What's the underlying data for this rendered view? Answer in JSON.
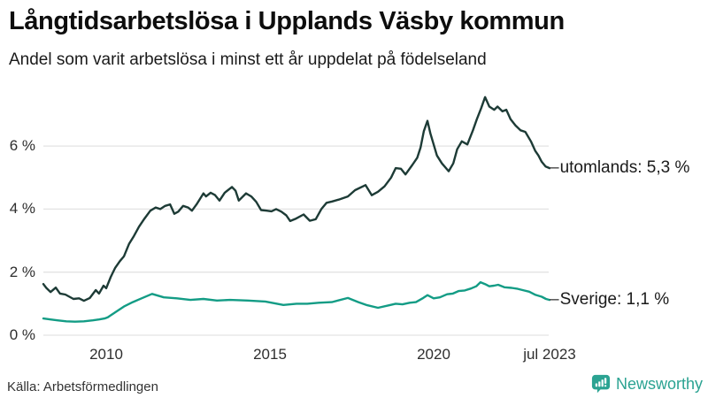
{
  "footer": {
    "source": "Källa: Arbetsförmedlingen",
    "brand": "Newsworthy"
  },
  "colors": {
    "grid": "#e3e3e3",
    "brand": "#2ba392",
    "utomlands_line": "#1d3b36",
    "sverige_line": "#139c85"
  },
  "chart_data": {
    "type": "line",
    "title": "Långtidsarbetslösa i Upplands Väsby kommun",
    "subtitle": "Andel som varit arbetslösa i minst ett år uppdelat på födelseland",
    "xlabel": "",
    "ylabel": "",
    "x_unit": "decimal year (monthly data)",
    "xlim": [
      2008.08,
      2023.54
    ],
    "ylim": [
      0,
      7.7
    ],
    "grid": "horizontal",
    "legend": "inline-end-labels",
    "connector": "–",
    "y_ticks": [
      {
        "value": 0,
        "label": "0 %"
      },
      {
        "value": 2,
        "label": "2 %"
      },
      {
        "value": 4,
        "label": "4 %"
      },
      {
        "value": 6,
        "label": "6 %"
      }
    ],
    "x_ticks": [
      {
        "value": 2010,
        "label": "2010"
      },
      {
        "value": 2015,
        "label": "2015"
      },
      {
        "value": 2020,
        "label": "2020"
      },
      {
        "value": 2023.54,
        "label": "jul 2023"
      }
    ],
    "series": [
      {
        "name": "utomlands",
        "end_label": "utomlands: 5,3 %",
        "end_value_text": "5,3 %",
        "color": "#1d3b36",
        "points": [
          [
            2008.08,
            1.62
          ],
          [
            2008.17,
            1.5
          ],
          [
            2008.3,
            1.37
          ],
          [
            2008.46,
            1.51
          ],
          [
            2008.59,
            1.32
          ],
          [
            2008.75,
            1.29
          ],
          [
            2009.0,
            1.15
          ],
          [
            2009.17,
            1.17
          ],
          [
            2009.32,
            1.09
          ],
          [
            2009.5,
            1.18
          ],
          [
            2009.68,
            1.43
          ],
          [
            2009.78,
            1.32
          ],
          [
            2009.92,
            1.57
          ],
          [
            2010.0,
            1.49
          ],
          [
            2010.14,
            1.85
          ],
          [
            2010.27,
            2.13
          ],
          [
            2010.42,
            2.35
          ],
          [
            2010.54,
            2.5
          ],
          [
            2010.7,
            2.9
          ],
          [
            2010.85,
            3.15
          ],
          [
            2011.0,
            3.44
          ],
          [
            2011.17,
            3.7
          ],
          [
            2011.35,
            3.95
          ],
          [
            2011.51,
            4.05
          ],
          [
            2011.65,
            4.0
          ],
          [
            2011.8,
            4.1
          ],
          [
            2011.95,
            4.15
          ],
          [
            2012.08,
            3.85
          ],
          [
            2012.2,
            3.92
          ],
          [
            2012.35,
            4.1
          ],
          [
            2012.5,
            4.05
          ],
          [
            2012.62,
            3.95
          ],
          [
            2012.76,
            4.15
          ],
          [
            2012.97,
            4.5
          ],
          [
            2013.05,
            4.4
          ],
          [
            2013.19,
            4.52
          ],
          [
            2013.32,
            4.45
          ],
          [
            2013.46,
            4.27
          ],
          [
            2013.62,
            4.52
          ],
          [
            2013.84,
            4.7
          ],
          [
            2013.95,
            4.58
          ],
          [
            2014.05,
            4.27
          ],
          [
            2014.27,
            4.5
          ],
          [
            2014.43,
            4.4
          ],
          [
            2014.58,
            4.23
          ],
          [
            2014.73,
            3.97
          ],
          [
            2014.9,
            3.95
          ],
          [
            2015.05,
            3.93
          ],
          [
            2015.19,
            4.0
          ],
          [
            2015.35,
            3.92
          ],
          [
            2015.5,
            3.8
          ],
          [
            2015.62,
            3.62
          ],
          [
            2015.8,
            3.7
          ],
          [
            2016.03,
            3.83
          ],
          [
            2016.22,
            3.63
          ],
          [
            2016.4,
            3.68
          ],
          [
            2016.57,
            4.0
          ],
          [
            2016.73,
            4.2
          ],
          [
            2016.9,
            4.24
          ],
          [
            2017.1,
            4.3
          ],
          [
            2017.38,
            4.4
          ],
          [
            2017.6,
            4.6
          ],
          [
            2017.92,
            4.76
          ],
          [
            2018.11,
            4.44
          ],
          [
            2018.3,
            4.55
          ],
          [
            2018.5,
            4.72
          ],
          [
            2018.7,
            5.0
          ],
          [
            2018.84,
            5.3
          ],
          [
            2019.0,
            5.28
          ],
          [
            2019.14,
            5.1
          ],
          [
            2019.35,
            5.4
          ],
          [
            2019.5,
            5.63
          ],
          [
            2019.6,
            5.95
          ],
          [
            2019.7,
            6.47
          ],
          [
            2019.81,
            6.8
          ],
          [
            2019.9,
            6.4
          ],
          [
            2020.0,
            6.05
          ],
          [
            2020.1,
            5.7
          ],
          [
            2020.25,
            5.45
          ],
          [
            2020.46,
            5.2
          ],
          [
            2020.6,
            5.45
          ],
          [
            2020.72,
            5.9
          ],
          [
            2020.86,
            6.15
          ],
          [
            2021.03,
            6.05
          ],
          [
            2021.2,
            6.5
          ],
          [
            2021.32,
            6.85
          ],
          [
            2021.45,
            7.2
          ],
          [
            2021.57,
            7.55
          ],
          [
            2021.7,
            7.25
          ],
          [
            2021.85,
            7.15
          ],
          [
            2021.95,
            7.25
          ],
          [
            2022.1,
            7.1
          ],
          [
            2022.22,
            7.15
          ],
          [
            2022.35,
            6.85
          ],
          [
            2022.5,
            6.65
          ],
          [
            2022.65,
            6.5
          ],
          [
            2022.8,
            6.45
          ],
          [
            2022.97,
            6.15
          ],
          [
            2023.1,
            5.85
          ],
          [
            2023.2,
            5.7
          ],
          [
            2023.3,
            5.5
          ],
          [
            2023.42,
            5.35
          ],
          [
            2023.54,
            5.3
          ]
        ]
      },
      {
        "name": "Sverige",
        "end_label": "Sverige: 1,1 %",
        "end_value_text": "1,1 %",
        "color": "#139c85",
        "points": [
          [
            2008.08,
            0.53
          ],
          [
            2008.3,
            0.5
          ],
          [
            2008.51,
            0.47
          ],
          [
            2008.78,
            0.44
          ],
          [
            2009.05,
            0.43
          ],
          [
            2009.32,
            0.44
          ],
          [
            2009.59,
            0.47
          ],
          [
            2009.78,
            0.5
          ],
          [
            2009.95,
            0.53
          ],
          [
            2010.05,
            0.57
          ],
          [
            2010.27,
            0.72
          ],
          [
            2010.54,
            0.91
          ],
          [
            2010.81,
            1.05
          ],
          [
            2011.08,
            1.17
          ],
          [
            2011.4,
            1.31
          ],
          [
            2011.76,
            1.2
          ],
          [
            2012.16,
            1.17
          ],
          [
            2012.57,
            1.12
          ],
          [
            2012.97,
            1.15
          ],
          [
            2013.38,
            1.1
          ],
          [
            2013.78,
            1.12
          ],
          [
            2014.32,
            1.1
          ],
          [
            2014.86,
            1.07
          ],
          [
            2015.41,
            0.96
          ],
          [
            2015.81,
            1.0
          ],
          [
            2016.14,
            1.0
          ],
          [
            2016.49,
            1.03
          ],
          [
            2016.89,
            1.05
          ],
          [
            2017.38,
            1.18
          ],
          [
            2017.7,
            1.05
          ],
          [
            2017.97,
            0.95
          ],
          [
            2018.3,
            0.87
          ],
          [
            2018.65,
            0.95
          ],
          [
            2018.84,
            1.0
          ],
          [
            2019.05,
            0.98
          ],
          [
            2019.27,
            1.03
          ],
          [
            2019.46,
            1.05
          ],
          [
            2019.68,
            1.18
          ],
          [
            2019.81,
            1.27
          ],
          [
            2020.0,
            1.17
          ],
          [
            2020.19,
            1.2
          ],
          [
            2020.41,
            1.3
          ],
          [
            2020.59,
            1.32
          ],
          [
            2020.76,
            1.4
          ],
          [
            2020.95,
            1.42
          ],
          [
            2021.14,
            1.48
          ],
          [
            2021.3,
            1.55
          ],
          [
            2021.43,
            1.68
          ],
          [
            2021.57,
            1.62
          ],
          [
            2021.7,
            1.55
          ],
          [
            2021.84,
            1.57
          ],
          [
            2021.97,
            1.6
          ],
          [
            2022.16,
            1.52
          ],
          [
            2022.38,
            1.5
          ],
          [
            2022.57,
            1.47
          ],
          [
            2022.76,
            1.42
          ],
          [
            2022.92,
            1.38
          ],
          [
            2023.11,
            1.28
          ],
          [
            2023.3,
            1.22
          ],
          [
            2023.43,
            1.15
          ],
          [
            2023.54,
            1.12
          ]
        ]
      }
    ]
  }
}
